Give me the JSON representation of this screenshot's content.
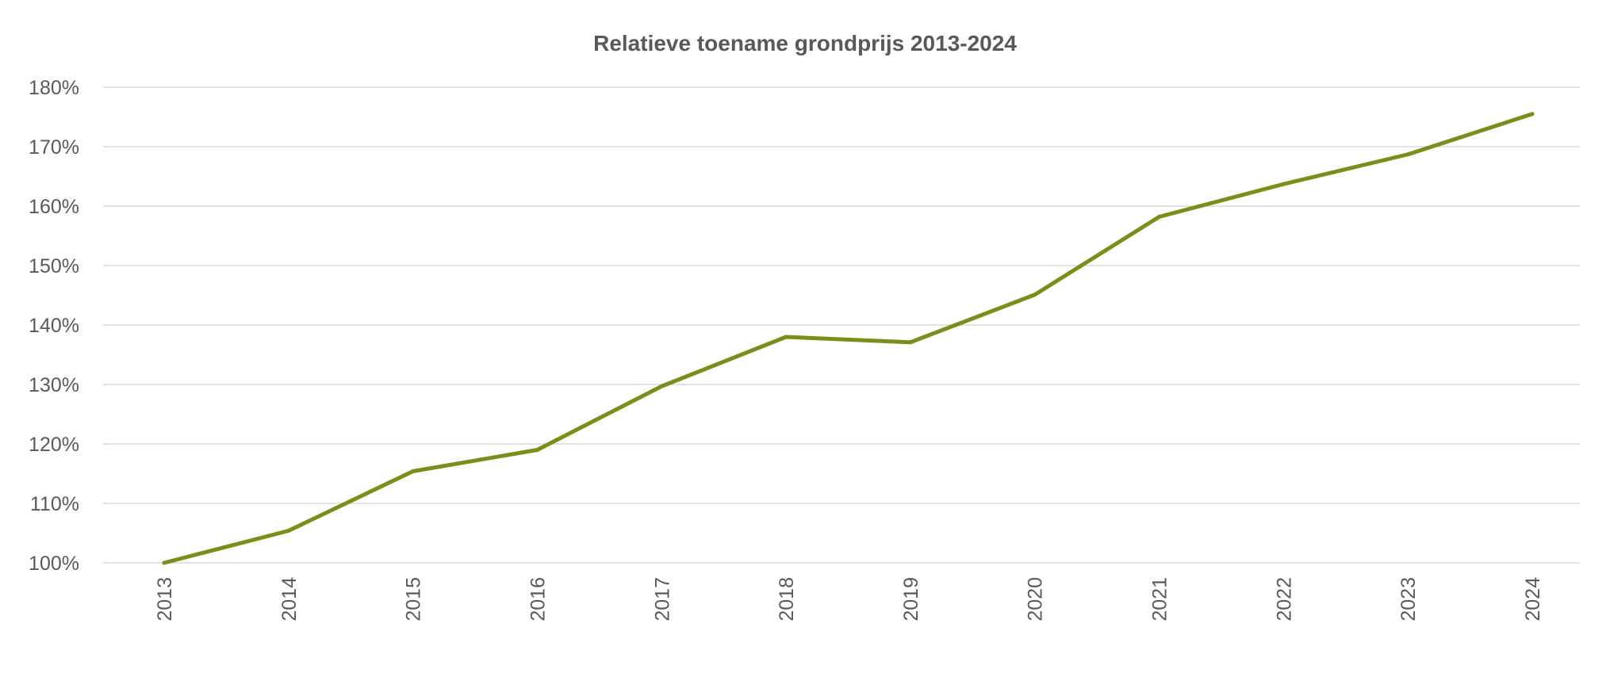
{
  "chart_data": {
    "type": "line",
    "title": "Relatieve toename grondprijs  2013-2024",
    "xlabel": "",
    "ylabel": "",
    "categories": [
      "2013",
      "2014",
      "2015",
      "2016",
      "2017",
      "2018",
      "2019",
      "2020",
      "2021",
      "2022",
      "2023",
      "2024"
    ],
    "series": [
      {
        "values": [
          100,
          105.4,
          115.4,
          119.0,
          129.7,
          138.0,
          137.1,
          145.1,
          158.2,
          163.7,
          168.7,
          175.5
        ]
      }
    ],
    "ylim": [
      100,
      180
    ],
    "yticks": [
      "100%",
      "110%",
      "120%",
      "130%",
      "140%",
      "150%",
      "160%",
      "170%",
      "180%"
    ],
    "grid": true,
    "legend": "none",
    "colors": {
      "line": "#76901A",
      "grid": "#D9D9D9",
      "text": "#595959"
    }
  }
}
